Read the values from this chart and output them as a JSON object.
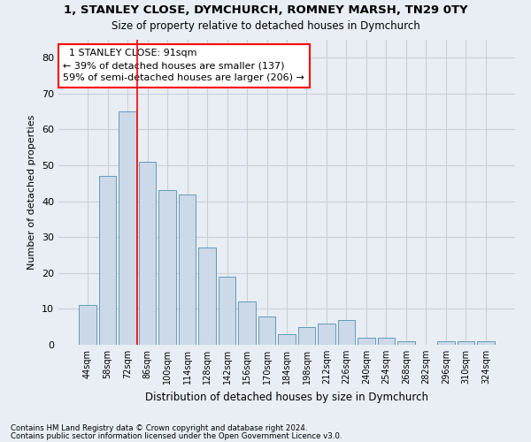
{
  "title1": "1, STANLEY CLOSE, DYMCHURCH, ROMNEY MARSH, TN29 0TY",
  "title2": "Size of property relative to detached houses in Dymchurch",
  "xlabel": "Distribution of detached houses by size in Dymchurch",
  "ylabel": "Number of detached properties",
  "bar_color": "#ccd9e8",
  "bar_edge_color": "#6699bb",
  "categories": [
    "44sqm",
    "58sqm",
    "72sqm",
    "86sqm",
    "100sqm",
    "114sqm",
    "128sqm",
    "142sqm",
    "156sqm",
    "170sqm",
    "184sqm",
    "198sqm",
    "212sqm",
    "226sqm",
    "240sqm",
    "254sqm",
    "268sqm",
    "282sqm",
    "296sqm",
    "310sqm",
    "324sqm"
  ],
  "values": [
    11,
    47,
    65,
    51,
    43,
    42,
    27,
    19,
    12,
    8,
    3,
    5,
    6,
    7,
    2,
    2,
    1,
    0,
    1,
    1,
    1
  ],
  "ylim": [
    0,
    85
  ],
  "yticks": [
    0,
    10,
    20,
    30,
    40,
    50,
    60,
    70,
    80
  ],
  "vline_position": 2.5,
  "annotation_text": "  1 STANLEY CLOSE: 91sqm  \n← 39% of detached houses are smaller (137)\n59% of semi-detached houses are larger (206) →",
  "annotation_box_color": "white",
  "annotation_box_edge_color": "red",
  "vline_color": "red",
  "grid_color": "#c8cfd8",
  "footnote1": "Contains HM Land Registry data © Crown copyright and database right 2024.",
  "footnote2": "Contains public sector information licensed under the Open Government Licence v3.0.",
  "bg_color": "#e8eef4",
  "plot_bg_color": "#e8eef4"
}
